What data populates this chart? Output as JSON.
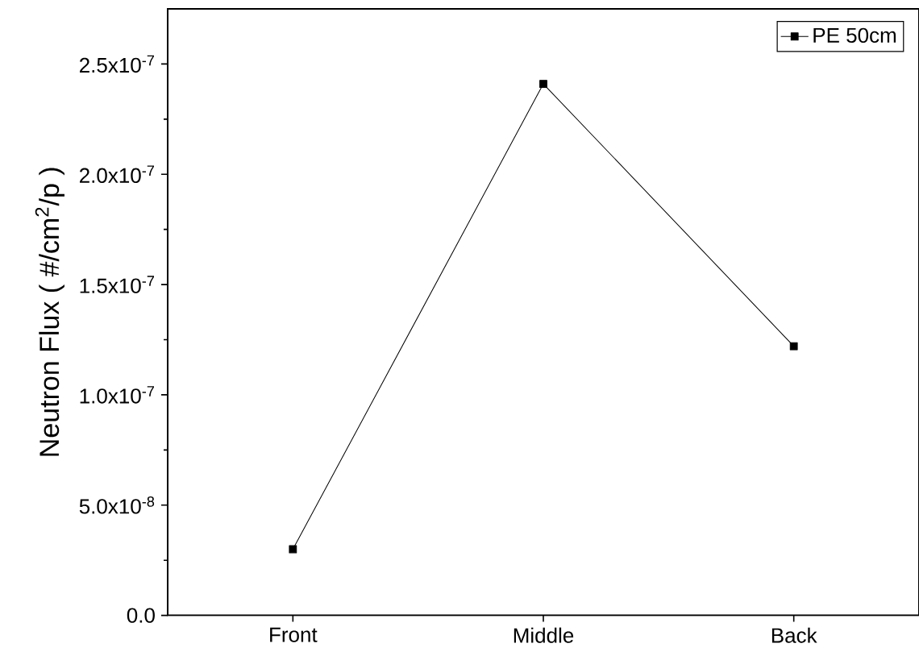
{
  "chart_data": {
    "type": "line",
    "ylabel": "Neutron Flux ( #/cm$^{2}$/p )",
    "categories": [
      "Front",
      "Middle",
      "Back"
    ],
    "series": [
      {
        "name": "PE 50cm",
        "color": "#000000",
        "values": [
          3e-08,
          2.41e-07,
          1.22e-07
        ]
      }
    ],
    "ylim": [
      0,
      2.75e-07
    ],
    "yticks": [
      {
        "value": 0,
        "label": "0.0"
      },
      {
        "value": 5e-08,
        "label": "5.0x10$^{-8}$"
      },
      {
        "value": 1e-07,
        "label": "1.0x10$^{-7}$"
      },
      {
        "value": 1.5e-07,
        "label": "1.5x10$^{-7}$"
      },
      {
        "value": 2e-07,
        "label": "2.0x10$^{-7}$"
      },
      {
        "value": 2.5e-07,
        "label": "2.5x10$^{-7}$"
      }
    ],
    "marker": "square",
    "line_style": "solid",
    "legend": "top right",
    "grid": false
  }
}
